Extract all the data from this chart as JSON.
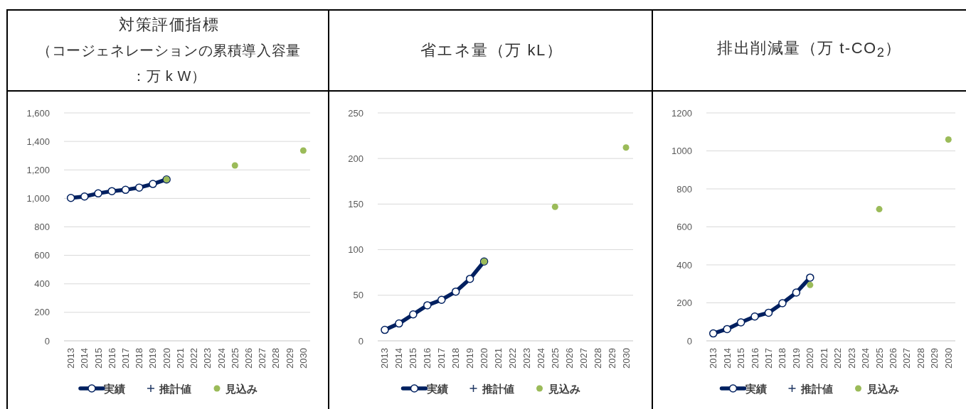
{
  "chart_data": [
    {
      "type": "line",
      "title": "対策評価指標",
      "subtitle": "（コージェネレーションの累積導入容量：万 k W）",
      "categories": [
        "2013",
        "2014",
        "2015",
        "2016",
        "2017",
        "2018",
        "2019",
        "2020",
        "2021",
        "2022",
        "2023",
        "2024",
        "2025",
        "2026",
        "2027",
        "2028",
        "2029",
        "2030"
      ],
      "series": [
        {
          "name": "実績",
          "type": "line",
          "color": "#002060",
          "marker": "circle",
          "values": [
            1003,
            1013,
            1035,
            1051,
            1060,
            1076,
            1101,
            1133,
            null,
            null,
            null,
            null,
            null,
            null,
            null,
            null,
            null,
            null
          ]
        },
        {
          "name": "推計値",
          "type": "scatter",
          "color": "#203864",
          "marker": "cross",
          "values": [
            null,
            null,
            null,
            null,
            null,
            null,
            null,
            null,
            null,
            null,
            null,
            null,
            null,
            null,
            null,
            null,
            null,
            null
          ]
        },
        {
          "name": "見込み",
          "type": "scatter",
          "color": "#9bbb59",
          "marker": "circle",
          "values": [
            null,
            null,
            null,
            null,
            null,
            null,
            null,
            1133,
            null,
            null,
            null,
            null,
            1231,
            null,
            null,
            null,
            null,
            1336
          ]
        }
      ],
      "ylim": [
        0,
        1600
      ],
      "yticks": [
        0,
        200,
        400,
        600,
        800,
        {
          "value": 1000,
          "label": "1,000"
        },
        {
          "value": 1200,
          "label": "1,200"
        },
        {
          "value": 1400,
          "label": "1,400"
        },
        {
          "value": 1600,
          "label": "1,600"
        }
      ],
      "grid": "y",
      "legend": "bottom"
    },
    {
      "type": "line",
      "title": "省エネ量（万 kL）",
      "categories": [
        "2013",
        "2014",
        "2015",
        "2016",
        "2017",
        "2018",
        "2019",
        "2020",
        "2021",
        "2022",
        "2023",
        "2024",
        "2025",
        "2026",
        "2027",
        "2028",
        "2029",
        "2030"
      ],
      "series": [
        {
          "name": "実績",
          "type": "line",
          "color": "#002060",
          "marker": "circle",
          "values": [
            12,
            19,
            29,
            39,
            45,
            54,
            68,
            87,
            null,
            null,
            null,
            null,
            null,
            null,
            null,
            null,
            null,
            null
          ]
        },
        {
          "name": "推計値",
          "type": "scatter",
          "color": "#203864",
          "marker": "cross",
          "values": [
            null,
            null,
            null,
            null,
            null,
            null,
            null,
            null,
            null,
            null,
            null,
            null,
            null,
            null,
            null,
            null,
            null,
            null
          ]
        },
        {
          "name": "見込み",
          "type": "scatter",
          "color": "#9bbb59",
          "marker": "circle",
          "values": [
            null,
            null,
            null,
            null,
            null,
            null,
            null,
            87,
            null,
            null,
            null,
            null,
            147,
            null,
            null,
            null,
            null,
            212
          ]
        }
      ],
      "ylim": [
        0,
        250
      ],
      "yticks": [
        0,
        50,
        100,
        150,
        200,
        250
      ],
      "grid": "y",
      "legend": "bottom"
    },
    {
      "type": "line",
      "title": "排出削減量（万 t-CO$_{2}$）",
      "categories": [
        "2013",
        "2014",
        "2015",
        "2016",
        "2017",
        "2018",
        "2019",
        "2020",
        "2021",
        "2022",
        "2023",
        "2024",
        "2025",
        "2026",
        "2027",
        "2028",
        "2029",
        "2030"
      ],
      "series": [
        {
          "name": "実績",
          "type": "line",
          "color": "#002060",
          "marker": "circle",
          "values": [
            39,
            62,
            97,
            128,
            148,
            198,
            254,
            333,
            null,
            null,
            null,
            null,
            null,
            null,
            null,
            null,
            null,
            null
          ]
        },
        {
          "name": "推計値",
          "type": "scatter",
          "color": "#203864",
          "marker": "cross",
          "values": [
            null,
            null,
            null,
            null,
            null,
            null,
            null,
            null,
            null,
            null,
            null,
            null,
            null,
            null,
            null,
            null,
            null,
            null
          ]
        },
        {
          "name": "見込み",
          "type": "scatter",
          "color": "#9bbb59",
          "marker": "circle",
          "values": [
            null,
            null,
            null,
            null,
            null,
            null,
            null,
            294,
            null,
            null,
            null,
            null,
            693,
            null,
            null,
            null,
            null,
            1060
          ]
        }
      ],
      "ylim": [
        0,
        1200
      ],
      "yticks": [
        0,
        200,
        400,
        600,
        800,
        1000,
        1200
      ],
      "grid": "y",
      "legend": "bottom"
    }
  ]
}
